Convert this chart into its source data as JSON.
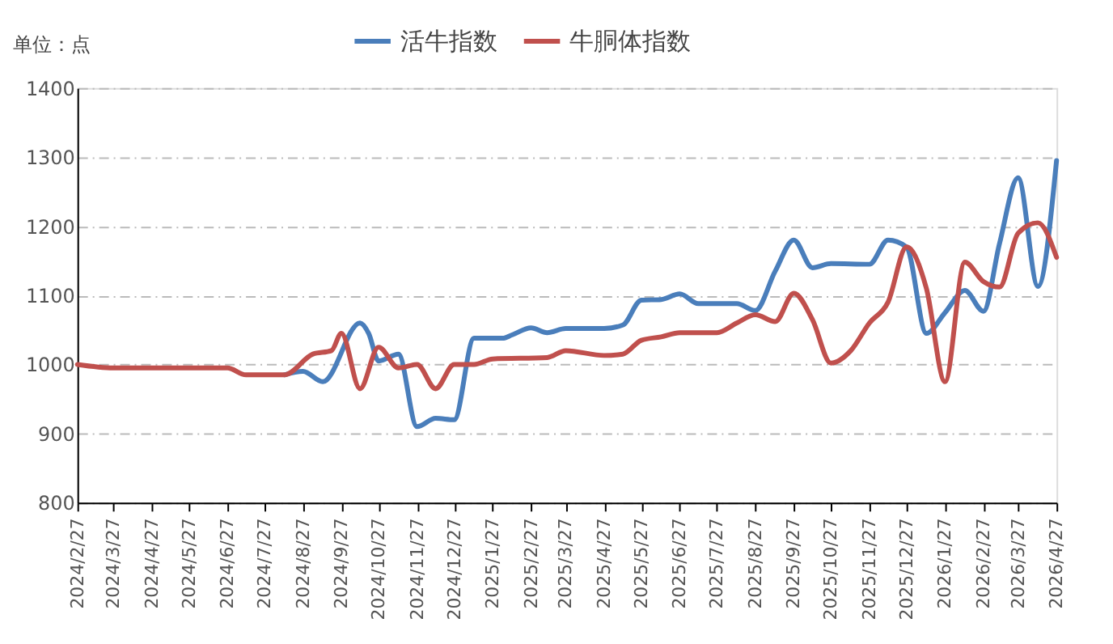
{
  "chart_data": {
    "type": "line",
    "annotations": [
      "单位：点"
    ],
    "xlim": [
      "2024-02-27",
      "2026-04-27"
    ],
    "xticks": [
      {
        "value": "2024-02-27",
        "label": "2024/2/27"
      },
      {
        "value": "2024-03-27",
        "label": "2024/3/27"
      },
      {
        "value": "2024-04-27",
        "label": "2024/4/27"
      },
      {
        "value": "2024-05-27",
        "label": "2024/5/27"
      },
      {
        "value": "2024-06-27",
        "label": "2024/6/27"
      },
      {
        "value": "2024-07-27",
        "label": "2024/7/27"
      },
      {
        "value": "2024-08-27",
        "label": "2024/8/27"
      },
      {
        "value": "2024-09-27",
        "label": "2024/9/27"
      },
      {
        "value": "2024-10-27",
        "label": "2024/10/27"
      },
      {
        "value": "2024-11-27",
        "label": "2024/11/27"
      },
      {
        "value": "2024-12-27",
        "label": "2024/12/27"
      },
      {
        "value": "2025-01-27",
        "label": "2025/1/27"
      },
      {
        "value": "2025-02-27",
        "label": "2025/2/27"
      },
      {
        "value": "2025-03-27",
        "label": "2025/3/27"
      },
      {
        "value": "2025-04-27",
        "label": "2025/4/27"
      },
      {
        "value": "2025-05-27",
        "label": "2025/5/27"
      },
      {
        "value": "2025-06-27",
        "label": "2025/6/27"
      },
      {
        "value": "2025-07-27",
        "label": "2025/7/27"
      },
      {
        "value": "2025-08-27",
        "label": "2025/8/27"
      },
      {
        "value": "2025-09-27",
        "label": "2025/9/27"
      },
      {
        "value": "2025-10-27",
        "label": "2025/10/27"
      },
      {
        "value": "2025-11-27",
        "label": "2025/11/27"
      },
      {
        "value": "2025-12-27",
        "label": "2025/12/27"
      },
      {
        "value": "2026-01-27",
        "label": "2026/1/27"
      },
      {
        "value": "2026-02-27",
        "label": "2026/2/27"
      },
      {
        "value": "2026-03-27",
        "label": "2026/3/27"
      },
      {
        "value": "2026-04-27",
        "label": "2026/4/27"
      }
    ],
    "ylim": [
      800,
      1400
    ],
    "yticks": [
      800,
      900,
      1000,
      1100,
      1200,
      1300,
      1400
    ],
    "grid": "y",
    "legend": "top",
    "marker": "none",
    "line_style": "solid",
    "series": [
      {
        "name": "活牛指数",
        "color": "#4a7ebb",
        "x": [
          "2024-08-12",
          "2024-08-27",
          "2024-09-12",
          "2024-10-12",
          "2024-10-19",
          "2024-10-27",
          "2024-11-12",
          "2024-11-27",
          "2024-12-12",
          "2024-12-27",
          "2025-01-12",
          "2025-02-04",
          "2025-02-12",
          "2025-02-27",
          "2025-03-12",
          "2025-03-27",
          "2025-04-27",
          "2025-05-12",
          "2025-05-27",
          "2025-06-12",
          "2025-06-27",
          "2025-07-12",
          "2025-08-12",
          "2025-08-27",
          "2025-09-12",
          "2025-09-27",
          "2025-10-12",
          "2025-10-27",
          "2025-11-27",
          "2025-12-12",
          "2025-12-27",
          "2026-01-12",
          "2026-01-27",
          "2026-02-12",
          "2026-02-27",
          "2026-03-12",
          "2026-03-27",
          "2026-04-12",
          "2026-04-27"
        ],
        "values": [
          985,
          990,
          975,
          1060,
          1045,
          1005,
          1015,
          910,
          922,
          920,
          1038,
          1038,
          1043,
          1053,
          1046,
          1052,
          1052,
          1057,
          1093,
          1094,
          1102,
          1088,
          1088,
          1078,
          1135,
          1180,
          1140,
          1146,
          1145,
          1180,
          1170,
          1045,
          1075,
          1107,
          1077,
          1175,
          1270,
          1113,
          1295
        ]
      },
      {
        "name": "牛胴体指数",
        "color": "#c0504d",
        "x": [
          "2024-02-27",
          "2024-03-27",
          "2024-04-27",
          "2024-05-27",
          "2024-06-27",
          "2024-07-12",
          "2024-08-12",
          "2024-09-04",
          "2024-09-19",
          "2024-09-27",
          "2024-10-12",
          "2024-10-27",
          "2024-11-12",
          "2024-11-27",
          "2024-12-12",
          "2024-12-27",
          "2025-01-12",
          "2025-01-27",
          "2025-03-12",
          "2025-03-27",
          "2025-04-27",
          "2025-05-12",
          "2025-05-27",
          "2025-06-12",
          "2025-06-27",
          "2025-07-27",
          "2025-08-12",
          "2025-08-27",
          "2025-09-12",
          "2025-09-27",
          "2025-10-12",
          "2025-10-27",
          "2025-11-12",
          "2025-11-27",
          "2025-12-12",
          "2025-12-27",
          "2026-01-12",
          "2026-01-27",
          "2026-02-12",
          "2026-02-27",
          "2026-03-12",
          "2026-03-27",
          "2026-04-12",
          "2026-04-27"
        ],
        "values": [
          1000,
          995,
          995,
          995,
          995,
          985,
          985,
          1015,
          1020,
          1045,
          965,
          1025,
          995,
          1000,
          965,
          1000,
          1000,
          1008,
          1010,
          1020,
          1013,
          1015,
          1035,
          1040,
          1046,
          1046,
          1060,
          1072,
          1062,
          1103,
          1065,
          1002,
          1020,
          1060,
          1090,
          1170,
          1110,
          975,
          1148,
          1120,
          1112,
          1190,
          1205,
          1155
        ]
      }
    ]
  }
}
